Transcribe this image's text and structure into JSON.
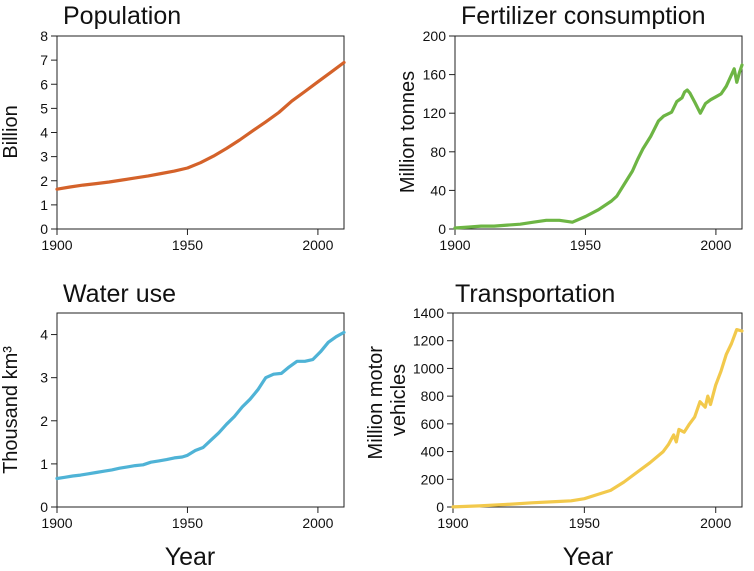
{
  "figure": {
    "x_axis_title": "Year"
  },
  "chart_data": [
    {
      "id": "population",
      "type": "line",
      "title": "Population",
      "ylabel": "Billion",
      "ylabel_lines": [
        "Billion"
      ],
      "xlabel": "",
      "xlim": [
        1900,
        2010
      ],
      "ylim": [
        0,
        8
      ],
      "xticks": [
        1900,
        1950,
        2000
      ],
      "yticks": [
        0,
        1,
        2,
        3,
        4,
        5,
        6,
        7,
        8
      ],
      "color": "#d4622a",
      "series": [
        {
          "x": [
            1900,
            1905,
            1910,
            1915,
            1920,
            1925,
            1930,
            1935,
            1940,
            1945,
            1950,
            1955,
            1960,
            1965,
            1970,
            1975,
            1980,
            1985,
            1990,
            1995,
            2000,
            2005,
            2010
          ],
          "y": [
            1.65,
            1.74,
            1.82,
            1.88,
            1.95,
            2.03,
            2.12,
            2.2,
            2.3,
            2.4,
            2.53,
            2.75,
            3.02,
            3.34,
            3.69,
            4.07,
            4.44,
            4.83,
            5.3,
            5.7,
            6.1,
            6.5,
            6.9
          ]
        }
      ]
    },
    {
      "id": "fertilizer",
      "type": "line",
      "title": "Fertilizer consumption",
      "ylabel": "Million tonnes",
      "ylabel_lines": [
        "Million tonnes"
      ],
      "xlabel": "",
      "xlim": [
        1900,
        2010
      ],
      "ylim": [
        0,
        200
      ],
      "xticks": [
        1900,
        1950,
        2000
      ],
      "yticks": [
        0,
        40,
        80,
        120,
        160,
        200
      ],
      "color": "#6db544",
      "series": [
        {
          "x": [
            1900,
            1905,
            1910,
            1915,
            1920,
            1925,
            1930,
            1935,
            1940,
            1945,
            1950,
            1955,
            1960,
            1962,
            1965,
            1968,
            1970,
            1972,
            1975,
            1978,
            1980,
            1983,
            1985,
            1987,
            1988,
            1989,
            1990,
            1992,
            1994,
            1996,
            1998,
            2000,
            2002,
            2004,
            2006,
            2007,
            2008,
            2009,
            2010
          ],
          "y": [
            1,
            2,
            3,
            3,
            4,
            5,
            7,
            9,
            9,
            7,
            13,
            20,
            29,
            34,
            47,
            60,
            72,
            83,
            96,
            112,
            117,
            121,
            132,
            136,
            142,
            144,
            141,
            131,
            120,
            130,
            134,
            137,
            140,
            148,
            160,
            166,
            152,
            162,
            170
          ]
        }
      ]
    },
    {
      "id": "water",
      "type": "line",
      "title": "Water use",
      "ylabel": "Thousand km³",
      "ylabel_lines": [
        "Thousand km³"
      ],
      "xlabel": "",
      "xlim": [
        1900,
        2010
      ],
      "ylim": [
        0,
        4.5
      ],
      "xticks": [
        1900,
        1950,
        2000
      ],
      "yticks": [
        0,
        1,
        2,
        3,
        4
      ],
      "color": "#4fb3d6",
      "series": [
        {
          "x": [
            1900,
            1903,
            1906,
            1909,
            1912,
            1915,
            1918,
            1921,
            1924,
            1927,
            1930,
            1933,
            1936,
            1939,
            1942,
            1945,
            1948,
            1950,
            1953,
            1956,
            1959,
            1962,
            1965,
            1968,
            1971,
            1974,
            1977,
            1980,
            1983,
            1986,
            1989,
            1992,
            1995,
            1998,
            2001,
            2004,
            2007,
            2010
          ],
          "y": [
            0.66,
            0.69,
            0.72,
            0.74,
            0.77,
            0.8,
            0.83,
            0.86,
            0.9,
            0.93,
            0.96,
            0.98,
            1.04,
            1.07,
            1.1,
            1.14,
            1.16,
            1.2,
            1.31,
            1.38,
            1.55,
            1.72,
            1.92,
            2.1,
            2.32,
            2.5,
            2.72,
            3.0,
            3.08,
            3.1,
            3.25,
            3.38,
            3.38,
            3.42,
            3.6,
            3.82,
            3.95,
            4.05
          ]
        }
      ]
    },
    {
      "id": "transport",
      "type": "line",
      "title": "Transportation",
      "ylabel": "Million motor vehicles",
      "ylabel_lines": [
        "Million motor",
        "vehicles"
      ],
      "xlabel": "",
      "xlim": [
        1900,
        2010
      ],
      "ylim": [
        0,
        1400
      ],
      "xticks": [
        1900,
        1950,
        2000
      ],
      "yticks": [
        0,
        200,
        400,
        600,
        800,
        1000,
        1200,
        1400
      ],
      "color": "#f2c94c",
      "series": [
        {
          "x": [
            1900,
            1910,
            1920,
            1930,
            1940,
            1945,
            1950,
            1955,
            1960,
            1965,
            1970,
            1975,
            1980,
            1982,
            1984,
            1985,
            1986,
            1988,
            1990,
            1992,
            1994,
            1996,
            1997,
            1998,
            2000,
            2002,
            2004,
            2006,
            2008,
            2010
          ],
          "y": [
            1,
            8,
            18,
            30,
            40,
            45,
            60,
            90,
            120,
            180,
            250,
            320,
            400,
            450,
            520,
            470,
            560,
            540,
            600,
            650,
            760,
            720,
            800,
            740,
            880,
            980,
            1100,
            1180,
            1280,
            1270
          ]
        }
      ]
    }
  ]
}
